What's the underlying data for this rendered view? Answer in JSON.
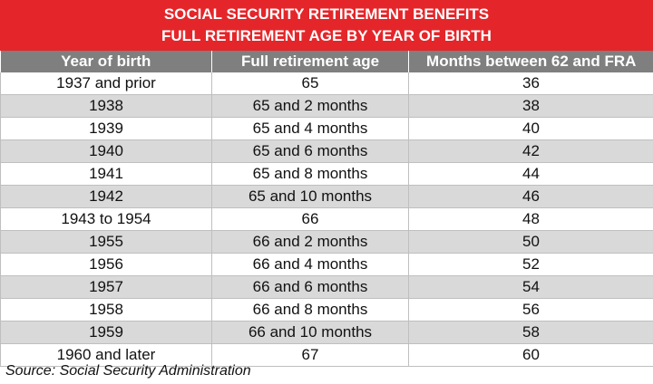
{
  "header": {
    "title_line1": "SOCIAL SECURITY RETIREMENT BENEFITS",
    "title_line2": "FULL RETIREMENT AGE BY YEAR OF BIRTH"
  },
  "table": {
    "columns": [
      "Year of birth",
      "Full retirement age",
      "Months between 62 and FRA"
    ],
    "rows": [
      [
        "1937 and prior",
        "65",
        "36"
      ],
      [
        "1938",
        "65 and 2 months",
        "38"
      ],
      [
        "1939",
        "65 and 4 months",
        "40"
      ],
      [
        "1940",
        "65 and 6 months",
        "42"
      ],
      [
        "1941",
        "65 and 8 months",
        "44"
      ],
      [
        "1942",
        "65 and 10 months",
        "46"
      ],
      [
        "1943 to 1954",
        "66",
        "48"
      ],
      [
        "1955",
        "66 and 2 months",
        "50"
      ],
      [
        "1956",
        "66 and 4 months",
        "52"
      ],
      [
        "1957",
        "66 and 6 months",
        "54"
      ],
      [
        "1958",
        "66 and 8 months",
        "56"
      ],
      [
        "1959",
        "66 and 10 months",
        "58"
      ],
      [
        "1960 and later",
        "67",
        "60"
      ]
    ]
  },
  "footer": {
    "source": "Source: Social Security Administration"
  },
  "colors": {
    "banner": "#e4262a",
    "header_row": "#7f7f7f",
    "stripe": "#d9d9d9"
  }
}
